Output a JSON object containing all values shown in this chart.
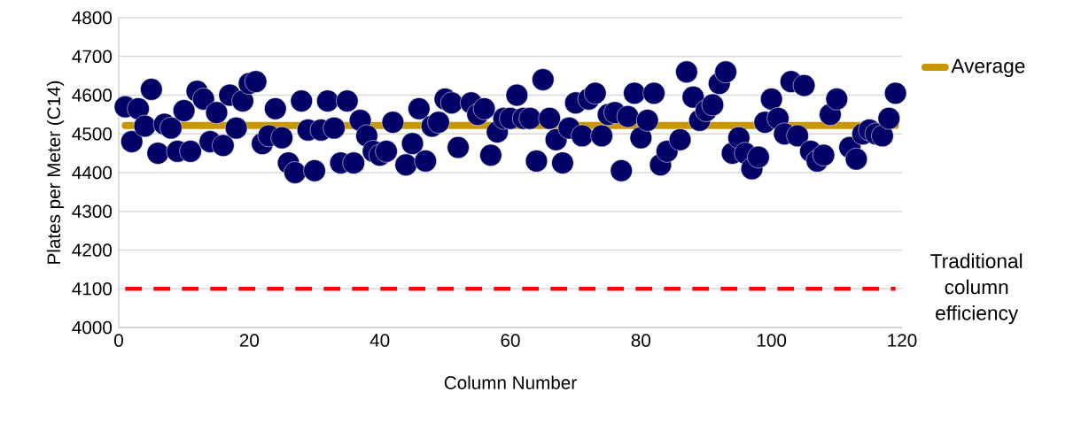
{
  "chart_data": {
    "type": "scatter",
    "xlabel": "Column Number",
    "ylabel": "Plates per Meter (C14)",
    "xlim": [
      0,
      120
    ],
    "xticks": [
      0,
      20,
      40,
      60,
      80,
      100,
      120
    ],
    "ylim": [
      4000,
      4800
    ],
    "yticks": [
      4000,
      4100,
      4200,
      4300,
      4400,
      4500,
      4600,
      4700,
      4800
    ],
    "grid": "y",
    "legend": "right",
    "series": [
      {
        "color": "#000066",
        "marker": "circle",
        "x": [
          1,
          2,
          3,
          4,
          5,
          6,
          7,
          8,
          9,
          10,
          11,
          12,
          13,
          14,
          15,
          16,
          17,
          18,
          19,
          20,
          21,
          22,
          23,
          24,
          25,
          26,
          27,
          28,
          29,
          30,
          31,
          32,
          33,
          34,
          35,
          36,
          37,
          38,
          39,
          40,
          41,
          42,
          44,
          45,
          46,
          47,
          48,
          49,
          50,
          51,
          52,
          54,
          55,
          56,
          57,
          58,
          59,
          60,
          61,
          62,
          63,
          64,
          65,
          66,
          67,
          68,
          69,
          70,
          71,
          72,
          73,
          74,
          75,
          76,
          77,
          78,
          79,
          80,
          81,
          82,
          83,
          84,
          86,
          87,
          88,
          89,
          90,
          91,
          92,
          93,
          94,
          95,
          96,
          97,
          98,
          99,
          100,
          101,
          102,
          103,
          104,
          105,
          106,
          107,
          108,
          109,
          110,
          112,
          113,
          114,
          115,
          116,
          117,
          118,
          119
        ],
        "values": [
          4570,
          4480,
          4565,
          4520,
          4615,
          4450,
          4525,
          4515,
          4455,
          4560,
          4455,
          4610,
          4590,
          4480,
          4555,
          4470,
          4600,
          4515,
          4585,
          4630,
          4635,
          4475,
          4495,
          4565,
          4490,
          4425,
          4400,
          4585,
          4510,
          4405,
          4510,
          4585,
          4515,
          4425,
          4585,
          4425,
          4535,
          4495,
          4455,
          4445,
          4455,
          4530,
          4420,
          4475,
          4565,
          4430,
          4520,
          4530,
          4590,
          4580,
          4465,
          4580,
          4550,
          4565,
          4445,
          4505,
          4540,
          4540,
          4600,
          4540,
          4540,
          4430,
          4640,
          4540,
          4485,
          4425,
          4515,
          4580,
          4495,
          4590,
          4605,
          4495,
          4550,
          4555,
          4405,
          4545,
          4605,
          4490,
          4535,
          4605,
          4420,
          4455,
          4485,
          4660,
          4595,
          4535,
          4560,
          4575,
          4630,
          4660,
          4450,
          4490,
          4450,
          4410,
          4440,
          4530,
          4590,
          4540,
          4500,
          4635,
          4495,
          4625,
          4455,
          4430,
          4445,
          4550,
          4590,
          4465,
          4435,
          4500,
          4510,
          4500,
          4495,
          4540,
          4605
        ]
      },
      {
        "type": "line",
        "name": "Average",
        "color": "#c89600",
        "marker": "none",
        "x": [
          1,
          119
        ],
        "values": [
          4522,
          4522
        ]
      }
    ],
    "ref_lines": [
      {
        "axis": "y",
        "value": 4100,
        "label": "Traditional column efficiency",
        "color": "#ff0000",
        "line_style": "dashed"
      }
    ]
  }
}
